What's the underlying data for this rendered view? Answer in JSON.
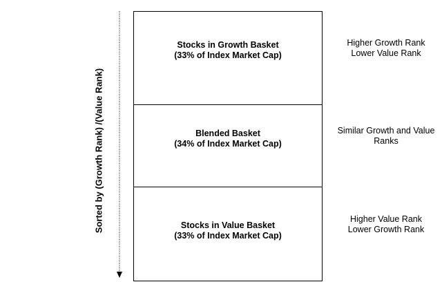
{
  "axis": {
    "label": "Sorted by (Growth Rank) /(Value Rank)"
  },
  "baskets": [
    {
      "line1": "Stocks in Growth Basket",
      "line2": "(33% of Index Market Cap)"
    },
    {
      "line1": "Blended Basket",
      "line2": "(34% of Index Market Cap)"
    },
    {
      "line1": "Stocks in Value Basket",
      "line2": "(33% of Index Market Cap)"
    }
  ],
  "descriptions": [
    {
      "line1": "Higher Growth Rank",
      "line2": "Lower Value Rank"
    },
    {
      "line1": "Similar Growth and Value",
      "line2": "Ranks"
    },
    {
      "line1": "Higher Value Rank",
      "line2": "Lower Growth Rank"
    }
  ]
}
